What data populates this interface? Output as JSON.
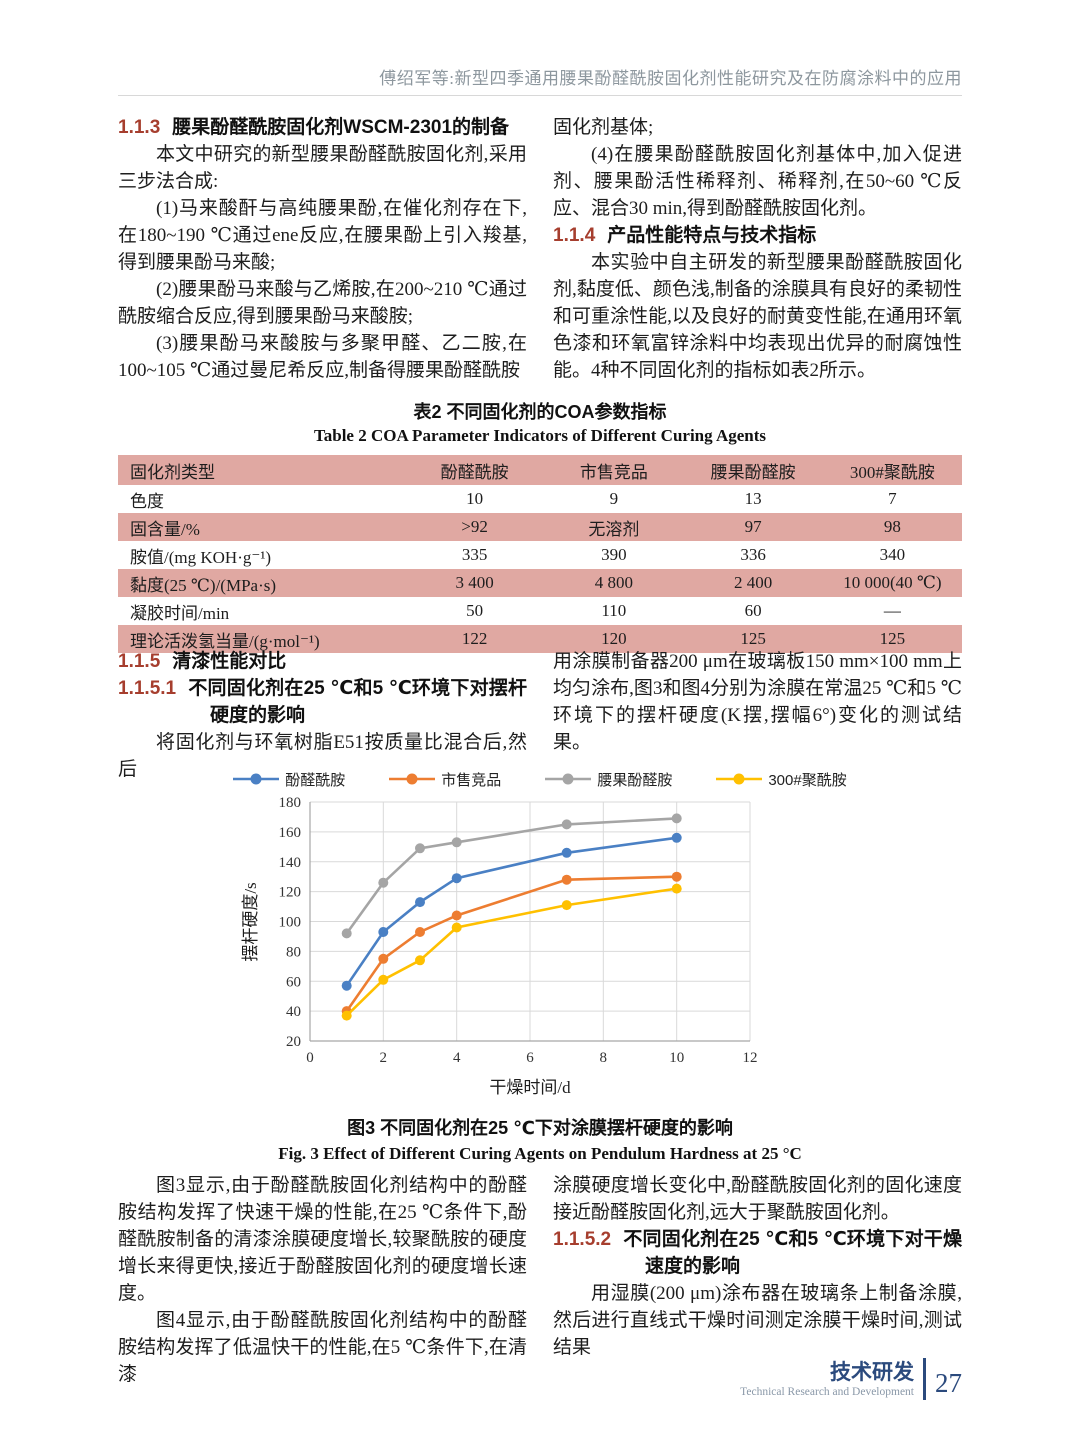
{
  "colors": {
    "accent_red": "#a63e2e",
    "table_pink": "#e0a8a2",
    "header_gray": "#8d979e",
    "footer_navy": "#2b4a7d",
    "grid_gray": "#d9d9d9",
    "axis_gray": "#a6a6a6"
  },
  "header": {
    "running_title": "傅绍军等:新型四季通用腰果酚醛酰胺固化剂性能研究及在防腐涂料中的应用"
  },
  "sections": {
    "s113": {
      "num": "1.1.3",
      "title": "腰果酚醛酰胺固化剂WSCM-2301的制备"
    },
    "s114": {
      "num": "1.1.4",
      "title": "产品性能特点与技术指标"
    },
    "s115": {
      "num": "1.1.5",
      "title": "清漆性能对比"
    },
    "s1151": {
      "num": "1.1.5.1",
      "title": "不同固化剂在25 ℃和5 ℃环境下对摆杆硬度的影响"
    },
    "s1152": {
      "num": "1.1.5.2",
      "title": "不同固化剂在25 ℃和5 ℃环境下对干燥速度的影响"
    }
  },
  "col1_top": {
    "p1": "本文中研究的新型腰果酚醛酰胺固化剂,采用三步法合成:",
    "p2": "(1)马来酸酐与高纯腰果酚,在催化剂存在下,在180~190 ℃通过ene反应,在腰果酚上引入羧基,得到腰果酚马来酸;",
    "p3": "(2)腰果酚马来酸与乙烯胺,在200~210 ℃通过酰胺缩合反应,得到腰果酚马来酸胺;",
    "p4": "(3)腰果酚马来酸胺与多聚甲醛、乙二胺,在100~105 ℃通过曼尼希反应,制备得腰果酚醛酰胺"
  },
  "col2_top": {
    "p0": "固化剂基体;",
    "p1": "(4)在腰果酚醛酰胺固化剂基体中,加入促进剂、腰果酚活性稀释剂、稀释剂,在50~60 ℃反应、混合30 min,得到酚醛酰胺固化剂。",
    "p2": "本实验中自主研发的新型腰果酚醛酰胺固化剂,黏度低、颜色浅,制备的涂膜具有良好的柔韧性和可重涂性能,以及良好的耐黄变性能,在通用环氧色漆和环氧富锌涂料中均表现出优异的耐腐蚀性能。4种不同固化剂的指标如表2所示。"
  },
  "table": {
    "title_zh": "表2  不同固化剂的COA参数指标",
    "title_en": "Table 2   COA Parameter Indicators of Different Curing Agents",
    "headers": [
      "固化剂类型",
      "酚醛酰胺",
      "市售竞品",
      "腰果酚醛胺",
      "300#聚酰胺"
    ],
    "rows": [
      [
        "色度",
        "10",
        "9",
        "13",
        "7"
      ],
      [
        "固含量/%",
        ">92",
        "无溶剂",
        "97",
        "98"
      ],
      [
        "胺值/(mg KOH·g⁻¹)",
        "335",
        "390",
        "336",
        "340"
      ],
      [
        "黏度(25 ℃)/(MPa·s)",
        "3 400",
        "4 800",
        "2 400",
        "10 000(40 ℃)"
      ],
      [
        "凝胶时间/min",
        "50",
        "110",
        "60",
        "—"
      ],
      [
        "理论活泼氢当量/(g·mol⁻¹)",
        "122",
        "120",
        "125",
        "125"
      ]
    ]
  },
  "col1_mid": {
    "p": "将固化剂与环氧树脂E51按质量比混合后,然后"
  },
  "col2_mid": {
    "p": "用涂膜制备器200 μm在玻璃板150 mm×100 mm上均匀涂布,图3和图4分别为涂膜在常温25 ℃和5 ℃环境下的摆杆硬度(K摆,摆幅6°)变化的测试结果。"
  },
  "chart_data": {
    "type": "line",
    "x": [
      1,
      2,
      3,
      4,
      7,
      10
    ],
    "series": [
      {
        "name": "酚醛酰胺",
        "color": "#4a80c4",
        "values": [
          57,
          93,
          113,
          129,
          146,
          156
        ]
      },
      {
        "name": "市售竞品",
        "color": "#ed7d31",
        "values": [
          40,
          75,
          93,
          104,
          128,
          130
        ]
      },
      {
        "name": "腰果酚醛胺",
        "color": "#a5a5a5",
        "values": [
          92,
          126,
          149,
          153,
          165,
          169
        ]
      },
      {
        "name": "300#聚酰胺",
        "color": "#ffc000",
        "values": [
          37,
          61,
          74,
          96,
          111,
          122
        ]
      }
    ],
    "xlabel": "干燥时间/d",
    "ylabel": "摆杆硬度/s",
    "xlim": [
      0,
      12
    ],
    "ylim": [
      20,
      180
    ],
    "xticks": [
      0,
      2,
      4,
      6,
      8,
      10,
      12
    ],
    "yticks": [
      20,
      40,
      60,
      80,
      100,
      120,
      140,
      160,
      180
    ],
    "grid": true,
    "legend_position": "top"
  },
  "figure": {
    "caption_zh": "图3  不同固化剂在25 ℃下对涂膜摆杆硬度的影响",
    "caption_en": "Fig. 3   Effect of Different Curing Agents on Pendulum Hardness at 25 °C"
  },
  "col1_bottom": {
    "p1": "图3显示,由于酚醛酰胺固化剂结构中的酚醛胺结构发挥了快速干燥的性能,在25 ℃条件下,酚醛酰胺制备的清漆涂膜硬度增长,较聚酰胺的硬度增长来得更快,接近于酚醛胺固化剂的硬度增长速度。",
    "p2": "图4显示,由于酚醛酰胺固化剂结构中的酚醛胺结构发挥了低温快干的性能,在5 ℃条件下,在清漆"
  },
  "col2_bottom": {
    "p1": "涂膜硬度增长变化中,酚醛酰胺固化剂的固化速度接近酚醛胺固化剂,远大于聚酰胺固化剂。",
    "p2": "用湿膜(200 μm)涂布器在玻璃条上制备涂膜,然后进行直线式干燥时间测定涂膜干燥时间,测试结果"
  },
  "footer": {
    "section_zh": "技术研发",
    "section_en": "Technical Research and Development",
    "page_number": "27"
  }
}
